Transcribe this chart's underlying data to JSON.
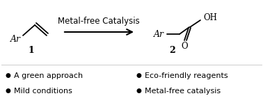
{
  "background_color": "#ffffff",
  "arrow_label": "Metal-free Catalysis",
  "compound1_label": "1",
  "compound2_label": "2",
  "bullet_points_left": [
    "A green approach",
    "Mild conditions"
  ],
  "bullet_points_right": [
    "Eco-friendly reagents",
    "Metal-free catalysis"
  ],
  "text_color": "#000000",
  "font_size_arrow_label": 8.5,
  "font_size_compound": 9,
  "font_size_bullet": 8,
  "figsize": [
    3.78,
    1.61
  ],
  "dpi": 100
}
